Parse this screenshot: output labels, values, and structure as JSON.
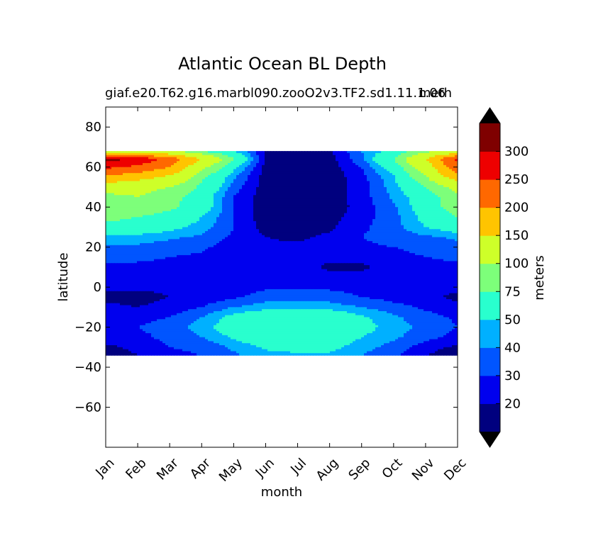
{
  "chart_data": {
    "type": "heatmap",
    "title": "Atlantic Ocean BL Depth",
    "subtitle": "giaf.e20.T62.g16.marbl090.zooO2v3.TF2.sd1.11.1.06",
    "subtitle_right": "meth",
    "xlabel": "month",
    "ylabel": "latitude",
    "x_tick_labels": [
      "Jan",
      "Feb",
      "Mar",
      "Apr",
      "May",
      "Jun",
      "Jul",
      "Aug",
      "Sep",
      "Oct",
      "Nov",
      "Dec"
    ],
    "y_tick_labels": [
      "80",
      "60",
      "40",
      "20",
      "0",
      "−20",
      "−40",
      "−60"
    ],
    "ylim": [
      -80,
      90
    ],
    "data_lat_range": [
      -34,
      68
    ],
    "colorbar": {
      "label": "meters",
      "tick_labels": [
        "20",
        "30",
        "40",
        "50",
        "75",
        "100",
        "150",
        "200",
        "250",
        "300"
      ],
      "levels": [
        10,
        20,
        30,
        40,
        50,
        75,
        100,
        150,
        200,
        250,
        300,
        350
      ],
      "colors": [
        "#00007f",
        "#0000ee",
        "#0055ff",
        "#00b0ff",
        "#29ffce",
        "#7dff7a",
        "#ceff29",
        "#ffc400",
        "#ff6800",
        "#ee0000",
        "#7f0000"
      ],
      "extend": "both",
      "under_color": "#000000",
      "over_color": "#000000"
    },
    "latitudes": [
      68,
      64,
      60,
      55,
      50,
      45,
      40,
      35,
      30,
      25,
      20,
      15,
      10,
      5,
      0,
      -5,
      -10,
      -15,
      -20,
      -25,
      -30,
      -34
    ],
    "values_by_month": [
      [
        120,
        320,
        260,
        190,
        120,
        90,
        100,
        80,
        70,
        45,
        38,
        32,
        28,
        24,
        22,
        18,
        22,
        26,
        30,
        26,
        18,
        16
      ],
      [
        110,
        290,
        240,
        170,
        110,
        100,
        95,
        75,
        65,
        45,
        38,
        32,
        28,
        22,
        22,
        16,
        20,
        26,
        30,
        26,
        22,
        20
      ],
      [
        100,
        230,
        200,
        140,
        100,
        85,
        80,
        65,
        55,
        42,
        35,
        30,
        27,
        24,
        22,
        20,
        24,
        30,
        36,
        34,
        30,
        28
      ],
      [
        70,
        150,
        110,
        80,
        70,
        60,
        60,
        50,
        45,
        38,
        32,
        28,
        25,
        24,
        22,
        24,
        30,
        40,
        44,
        40,
        32,
        30
      ],
      [
        50,
        75,
        55,
        42,
        35,
        30,
        30,
        30,
        30,
        28,
        25,
        22,
        24,
        26,
        24,
        28,
        40,
        55,
        60,
        52,
        42,
        38
      ],
      [
        20,
        18,
        16,
        15,
        15,
        14,
        14,
        14,
        16,
        20,
        22,
        22,
        25,
        28,
        28,
        35,
        45,
        65,
        70,
        62,
        52,
        46
      ],
      [
        16,
        14,
        14,
        13,
        13,
        13,
        13,
        13,
        15,
        18,
        22,
        22,
        24,
        28,
        28,
        35,
        45,
        68,
        72,
        65,
        55,
        48
      ],
      [
        18,
        15,
        15,
        14,
        14,
        14,
        14,
        16,
        18,
        22,
        24,
        22,
        18,
        24,
        28,
        35,
        45,
        65,
        70,
        62,
        54,
        48
      ],
      [
        40,
        38,
        30,
        26,
        25,
        25,
        24,
        26,
        28,
        30,
        28,
        24,
        18,
        24,
        26,
        30,
        40,
        52,
        56,
        50,
        44,
        40
      ],
      [
        55,
        75,
        60,
        48,
        45,
        42,
        38,
        36,
        36,
        34,
        30,
        26,
        24,
        24,
        24,
        26,
        34,
        42,
        44,
        42,
        36,
        32
      ],
      [
        90,
        150,
        120,
        95,
        75,
        60,
        60,
        55,
        50,
        38,
        34,
        30,
        26,
        24,
        22,
        22,
        28,
        34,
        38,
        34,
        24,
        20
      ],
      [
        110,
        260,
        240,
        180,
        110,
        95,
        90,
        75,
        60,
        42,
        36,
        32,
        28,
        24,
        22,
        18,
        22,
        28,
        30,
        26,
        18,
        14
      ]
    ]
  }
}
